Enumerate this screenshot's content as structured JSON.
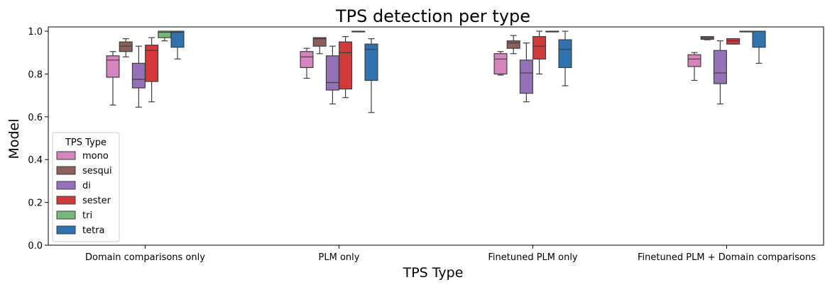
{
  "chart_data": {
    "type": "box",
    "title": "TPS detection per type",
    "xlabel": "TPS Type",
    "ylabel": "Model",
    "ylim": [
      0,
      1.02
    ],
    "yticks": [
      "0.0",
      "0.2",
      "0.4",
      "0.6",
      "0.8",
      "1.0"
    ],
    "categories": [
      "Domain comparisons only",
      "PLM only",
      "Finetuned PLM only",
      "Finetuned PLM + Domain comparisons"
    ],
    "legend": {
      "title": "TPS Type",
      "placement": "lower-left"
    },
    "series": [
      {
        "name": "mono",
        "color": "#d684bd",
        "boxes": [
          {
            "min": 0.655,
            "q1": 0.785,
            "median": 0.865,
            "q3": 0.885,
            "max": 0.905
          },
          {
            "min": 0.78,
            "q1": 0.83,
            "median": 0.88,
            "q3": 0.905,
            "max": 0.92
          },
          {
            "min": 0.795,
            "q1": 0.8,
            "median": 0.87,
            "q3": 0.895,
            "max": 0.905
          },
          {
            "min": 0.77,
            "q1": 0.835,
            "median": 0.87,
            "q3": 0.89,
            "max": 0.9
          }
        ]
      },
      {
        "name": "sesqui",
        "color": "#8c6058",
        "boxes": [
          {
            "min": 0.88,
            "q1": 0.905,
            "median": 0.93,
            "q3": 0.95,
            "max": 0.965
          },
          {
            "min": 0.895,
            "q1": 0.93,
            "median": 0.965,
            "q3": 0.97,
            "max": 0.97
          },
          {
            "min": 0.895,
            "q1": 0.92,
            "median": 0.945,
            "q3": 0.955,
            "max": 0.98
          },
          {
            "min": 0.96,
            "q1": 0.962,
            "median": 0.968,
            "q3": 0.975,
            "max": 0.975
          }
        ]
      },
      {
        "name": "di",
        "color": "#9572b7",
        "boxes": [
          {
            "min": 0.645,
            "q1": 0.735,
            "median": 0.775,
            "q3": 0.85,
            "max": 0.93
          },
          {
            "min": 0.66,
            "q1": 0.725,
            "median": 0.76,
            "q3": 0.885,
            "max": 0.93
          },
          {
            "min": 0.67,
            "q1": 0.71,
            "median": 0.805,
            "q3": 0.865,
            "max": 0.945
          },
          {
            "min": 0.66,
            "q1": 0.755,
            "median": 0.805,
            "q3": 0.91,
            "max": 0.955
          }
        ]
      },
      {
        "name": "sester",
        "color": "#d03a3b",
        "boxes": [
          {
            "min": 0.67,
            "q1": 0.765,
            "median": 0.91,
            "q3": 0.935,
            "max": 0.97
          },
          {
            "min": 0.69,
            "q1": 0.73,
            "median": 0.9,
            "q3": 0.95,
            "max": 0.975
          },
          {
            "min": 0.8,
            "q1": 0.87,
            "median": 0.93,
            "q3": 0.975,
            "max": 1.0
          },
          {
            "min": 0.94,
            "q1": 0.94,
            "median": 0.955,
            "q3": 0.965,
            "max": 0.965
          }
        ]
      },
      {
        "name": "tri",
        "color": "#77b77a",
        "boxes": [
          {
            "min": 0.955,
            "q1": 0.97,
            "median": 0.995,
            "q3": 1.0,
            "max": 1.0
          },
          {
            "min": 0.998,
            "q1": 0.999,
            "median": 1.0,
            "q3": 1.0,
            "max": 1.0
          },
          {
            "min": 0.998,
            "q1": 0.999,
            "median": 1.0,
            "q3": 1.0,
            "max": 1.0
          },
          {
            "min": 0.998,
            "q1": 0.999,
            "median": 1.0,
            "q3": 1.0,
            "max": 1.0
          }
        ]
      },
      {
        "name": "tetra",
        "color": "#2f72ad",
        "boxes": [
          {
            "min": 0.87,
            "q1": 0.925,
            "median": 0.995,
            "q3": 1.0,
            "max": 1.0
          },
          {
            "min": 0.62,
            "q1": 0.77,
            "median": 0.915,
            "q3": 0.94,
            "max": 0.965
          },
          {
            "min": 0.745,
            "q1": 0.83,
            "median": 0.915,
            "q3": 0.96,
            "max": 1.0
          },
          {
            "min": 0.85,
            "q1": 0.925,
            "median": 1.0,
            "q3": 1.0,
            "max": 1.0
          }
        ]
      }
    ]
  }
}
